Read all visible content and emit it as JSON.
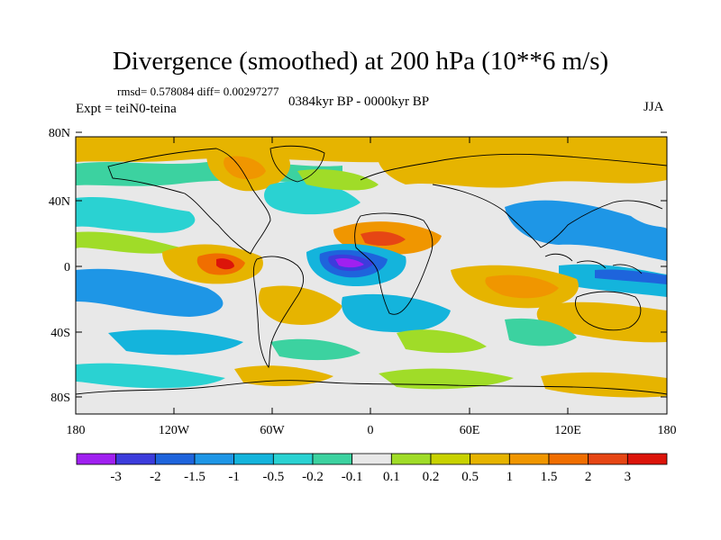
{
  "title": "Divergence (smoothed) at 200 hPa (10**6 m/s)",
  "stats": "rmsd= 0.578084  diff= 0.00297277",
  "period": "0384kyr BP - 0000kyr BP",
  "experiment": "Expt = teiN0-teina",
  "season": "JJA",
  "lat_ticks": [
    "80N",
    "40N",
    "0",
    "40S",
    "80S"
  ],
  "lon_ticks": [
    "180",
    "120W",
    "60W",
    "0",
    "60E",
    "120E",
    "180"
  ],
  "colorbar": {
    "labels": [
      "-3",
      "-2",
      "-1.5",
      "-1",
      "-0.5",
      "-0.2",
      "-0.1",
      "0.1",
      "0.2",
      "0.5",
      "1",
      "1.5",
      "2",
      "3"
    ],
    "colors": [
      "#a020f0",
      "#3c3cdc",
      "#1e64dc",
      "#1e96e6",
      "#14b4dc",
      "#2ad2d2",
      "#3cd2a0",
      "#e8e8e8",
      "#a0dc28",
      "#c8d200",
      "#e6b400",
      "#f09600",
      "#f06e00",
      "#e64614",
      "#dc140a"
    ]
  },
  "colors": {
    "land_outline": "#000000",
    "zero_band": "#e8e8e8"
  }
}
